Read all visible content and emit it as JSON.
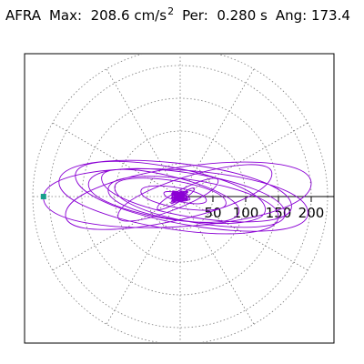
{
  "header": {
    "station": "AFRA",
    "max_label": "Max:",
    "max_value": "208.6",
    "max_unit": "cm/s",
    "max_unit_exp": "2",
    "per_label": "Per:",
    "per_value": "0.280 s",
    "ang_label": "Ang:",
    "ang_value": "173.4"
  },
  "chart_data": {
    "type": "line",
    "projection": "polar",
    "radial_ticks": [
      50,
      100,
      150,
      200
    ],
    "radial_max": 225,
    "radial_grid_style": "dotted",
    "angular_grid_step_deg": 30,
    "grid": true,
    "series": [
      {
        "color": "#8a00d4",
        "trace_style": "orbit",
        "x": [
          0,
          2,
          -3,
          5,
          -6,
          4,
          -8,
          10,
          -14,
          22,
          -35,
          58,
          -95,
          140,
          -175,
          200,
          -208.6,
          195,
          -160,
          130,
          -110,
          150,
          -185,
          170,
          -120,
          90,
          -140,
          160,
          -100,
          70,
          -60,
          40,
          -25,
          15,
          -10,
          6,
          -4,
          2,
          0
        ],
        "y": [
          0,
          3,
          -2,
          4,
          -5,
          6,
          -4,
          8,
          -10,
          12,
          -18,
          24,
          -30,
          35,
          -28,
          20,
          -2,
          -25,
          32,
          -20,
          10,
          -30,
          22,
          -15,
          28,
          -22,
          18,
          -26,
          14,
          -10,
          8,
          -6,
          5,
          -4,
          3,
          -2,
          2,
          -1,
          0
        ]
      }
    ],
    "marker": {
      "color": "#1a9e8c",
      "x": -208.6,
      "y": 0
    }
  }
}
